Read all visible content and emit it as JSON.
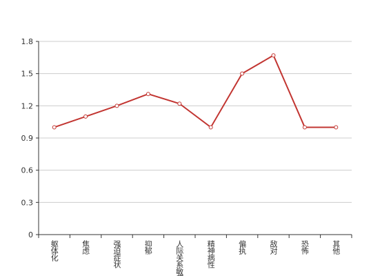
{
  "chart_data": {
    "type": "line",
    "categories": [
      "躯体化",
      "焦虑",
      "强迫症状",
      "抑郁",
      "人际关系敏感",
      "精神病性",
      "偏执",
      "敌对",
      "恐怖",
      "其他"
    ],
    "series": [
      {
        "color": "#c23531",
        "values": [
          1.0,
          1.1,
          1.2,
          1.31,
          1.22,
          1.0,
          1.5,
          1.67,
          1.0,
          1.0
        ]
      }
    ],
    "ylim": [
      0,
      1.8
    ],
    "yticks": [
      0,
      0.3,
      0.6,
      0.9,
      1.2,
      1.5,
      1.8
    ],
    "grid": true
  }
}
